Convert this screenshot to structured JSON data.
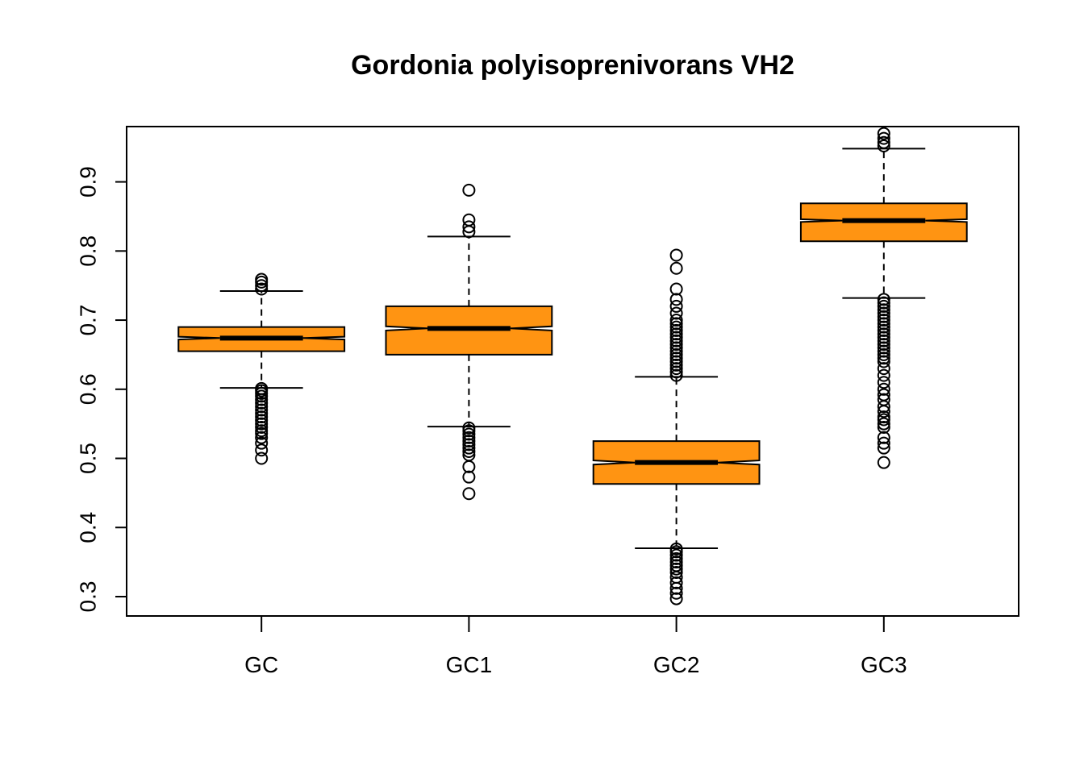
{
  "chart_data": {
    "type": "boxplot",
    "title": "Gordonia polyisoprenivorans VH2",
    "xlabel": "",
    "ylabel": "",
    "categories": [
      "GC",
      "GC1",
      "GC2",
      "GC3"
    ],
    "ylim": [
      0.272,
      0.98
    ],
    "yticks": [
      0.3,
      0.4,
      0.5,
      0.6,
      0.7,
      0.8,
      0.9
    ],
    "ytick_labels": [
      "0.3",
      "0.4",
      "0.5",
      "0.6",
      "0.7",
      "0.8",
      "0.9"
    ],
    "notched": true,
    "box_color": "#FF9412",
    "boxes": [
      {
        "label": "GC",
        "whisker_low": 0.602,
        "q1": 0.655,
        "median": 0.674,
        "q3": 0.69,
        "whisker_high": 0.742,
        "notch_low": 0.672,
        "notch_high": 0.676,
        "outliers": [
          0.5,
          0.512,
          0.522,
          0.53,
          0.536,
          0.54,
          0.545,
          0.55,
          0.555,
          0.56,
          0.565,
          0.57,
          0.575,
          0.58,
          0.585,
          0.59,
          0.594,
          0.598,
          0.601,
          0.745,
          0.75,
          0.755,
          0.759
        ]
      },
      {
        "label": "GC1",
        "whisker_low": 0.546,
        "q1": 0.65,
        "median": 0.688,
        "q3": 0.72,
        "whisker_high": 0.821,
        "notch_low": 0.685,
        "notch_high": 0.691,
        "outliers": [
          0.449,
          0.473,
          0.488,
          0.505,
          0.51,
          0.515,
          0.52,
          0.525,
          0.53,
          0.535,
          0.54,
          0.544,
          0.828,
          0.835,
          0.845,
          0.888
        ]
      },
      {
        "label": "GC2",
        "whisker_low": 0.37,
        "q1": 0.463,
        "median": 0.494,
        "q3": 0.525,
        "whisker_high": 0.618,
        "notch_low": 0.491,
        "notch_high": 0.497,
        "outliers": [
          0.297,
          0.305,
          0.312,
          0.32,
          0.328,
          0.335,
          0.34,
          0.345,
          0.35,
          0.355,
          0.36,
          0.365,
          0.369,
          0.62,
          0.625,
          0.63,
          0.635,
          0.64,
          0.645,
          0.65,
          0.655,
          0.66,
          0.665,
          0.67,
          0.675,
          0.68,
          0.685,
          0.69,
          0.695,
          0.7,
          0.71,
          0.72,
          0.73,
          0.745,
          0.775,
          0.794
        ]
      },
      {
        "label": "GC3",
        "whisker_low": 0.732,
        "q1": 0.814,
        "median": 0.844,
        "q3": 0.869,
        "whisker_high": 0.948,
        "notch_low": 0.842,
        "notch_high": 0.846,
        "outliers": [
          0.494,
          0.515,
          0.522,
          0.53,
          0.545,
          0.55,
          0.556,
          0.56,
          0.568,
          0.575,
          0.585,
          0.592,
          0.6,
          0.61,
          0.62,
          0.63,
          0.64,
          0.645,
          0.65,
          0.655,
          0.66,
          0.665,
          0.67,
          0.675,
          0.68,
          0.685,
          0.69,
          0.695,
          0.7,
          0.705,
          0.71,
          0.715,
          0.72,
          0.725,
          0.73,
          0.952,
          0.957,
          0.963,
          0.97
        ]
      }
    ]
  }
}
